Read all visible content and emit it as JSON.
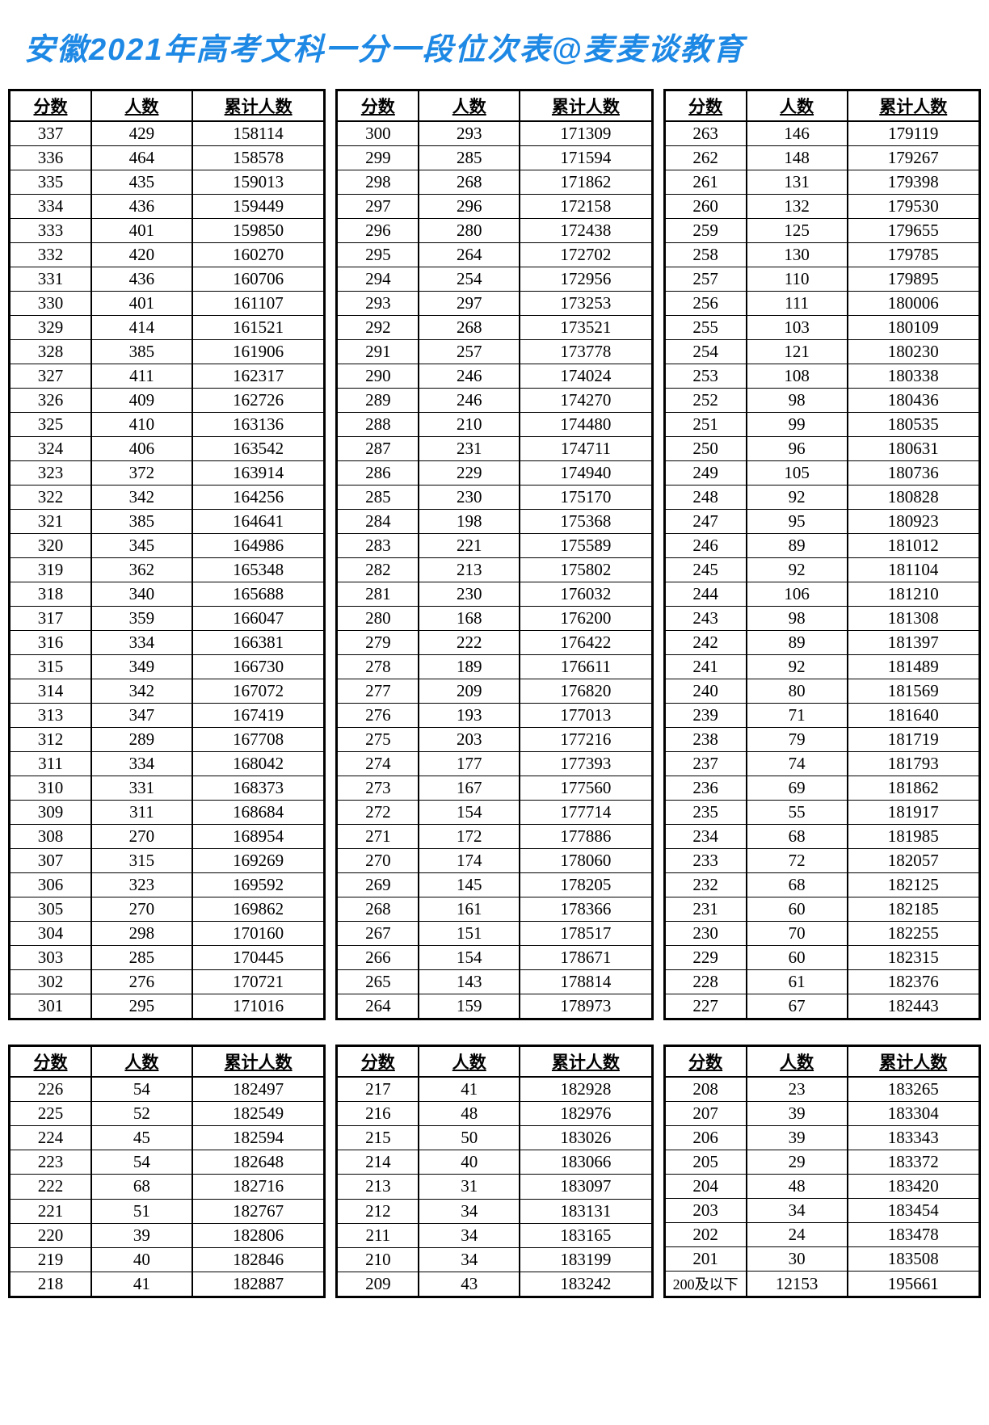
{
  "title": "安徽2021年高考文科一分一段位次表@麦麦谈教育",
  "columns": [
    "分数",
    "人数",
    "累计人数"
  ],
  "styling": {
    "title_color": "#1e88e5",
    "title_fontsize": 38,
    "border_color": "#000000",
    "background_color": "#ffffff",
    "cell_fontsize": 21,
    "header_fontsize": 21
  },
  "top_block": {
    "col1": [
      [
        337,
        429,
        158114
      ],
      [
        336,
        464,
        158578
      ],
      [
        335,
        435,
        159013
      ],
      [
        334,
        436,
        159449
      ],
      [
        333,
        401,
        159850
      ],
      [
        332,
        420,
        160270
      ],
      [
        331,
        436,
        160706
      ],
      [
        330,
        401,
        161107
      ],
      [
        329,
        414,
        161521
      ],
      [
        328,
        385,
        161906
      ],
      [
        327,
        411,
        162317
      ],
      [
        326,
        409,
        162726
      ],
      [
        325,
        410,
        163136
      ],
      [
        324,
        406,
        163542
      ],
      [
        323,
        372,
        163914
      ],
      [
        322,
        342,
        164256
      ],
      [
        321,
        385,
        164641
      ],
      [
        320,
        345,
        164986
      ],
      [
        319,
        362,
        165348
      ],
      [
        318,
        340,
        165688
      ],
      [
        317,
        359,
        166047
      ],
      [
        316,
        334,
        166381
      ],
      [
        315,
        349,
        166730
      ],
      [
        314,
        342,
        167072
      ],
      [
        313,
        347,
        167419
      ],
      [
        312,
        289,
        167708
      ],
      [
        311,
        334,
        168042
      ],
      [
        310,
        331,
        168373
      ],
      [
        309,
        311,
        168684
      ],
      [
        308,
        270,
        168954
      ],
      [
        307,
        315,
        169269
      ],
      [
        306,
        323,
        169592
      ],
      [
        305,
        270,
        169862
      ],
      [
        304,
        298,
        170160
      ],
      [
        303,
        285,
        170445
      ],
      [
        302,
        276,
        170721
      ],
      [
        301,
        295,
        171016
      ]
    ],
    "col2": [
      [
        300,
        293,
        171309
      ],
      [
        299,
        285,
        171594
      ],
      [
        298,
        268,
        171862
      ],
      [
        297,
        296,
        172158
      ],
      [
        296,
        280,
        172438
      ],
      [
        295,
        264,
        172702
      ],
      [
        294,
        254,
        172956
      ],
      [
        293,
        297,
        173253
      ],
      [
        292,
        268,
        173521
      ],
      [
        291,
        257,
        173778
      ],
      [
        290,
        246,
        174024
      ],
      [
        289,
        246,
        174270
      ],
      [
        288,
        210,
        174480
      ],
      [
        287,
        231,
        174711
      ],
      [
        286,
        229,
        174940
      ],
      [
        285,
        230,
        175170
      ],
      [
        284,
        198,
        175368
      ],
      [
        283,
        221,
        175589
      ],
      [
        282,
        213,
        175802
      ],
      [
        281,
        230,
        176032
      ],
      [
        280,
        168,
        176200
      ],
      [
        279,
        222,
        176422
      ],
      [
        278,
        189,
        176611
      ],
      [
        277,
        209,
        176820
      ],
      [
        276,
        193,
        177013
      ],
      [
        275,
        203,
        177216
      ],
      [
        274,
        177,
        177393
      ],
      [
        273,
        167,
        177560
      ],
      [
        272,
        154,
        177714
      ],
      [
        271,
        172,
        177886
      ],
      [
        270,
        174,
        178060
      ],
      [
        269,
        145,
        178205
      ],
      [
        268,
        161,
        178366
      ],
      [
        267,
        151,
        178517
      ],
      [
        266,
        154,
        178671
      ],
      [
        265,
        143,
        178814
      ],
      [
        264,
        159,
        178973
      ]
    ],
    "col3": [
      [
        263,
        146,
        179119
      ],
      [
        262,
        148,
        179267
      ],
      [
        261,
        131,
        179398
      ],
      [
        260,
        132,
        179530
      ],
      [
        259,
        125,
        179655
      ],
      [
        258,
        130,
        179785
      ],
      [
        257,
        110,
        179895
      ],
      [
        256,
        111,
        180006
      ],
      [
        255,
        103,
        180109
      ],
      [
        254,
        121,
        180230
      ],
      [
        253,
        108,
        180338
      ],
      [
        252,
        98,
        180436
      ],
      [
        251,
        99,
        180535
      ],
      [
        250,
        96,
        180631
      ],
      [
        249,
        105,
        180736
      ],
      [
        248,
        92,
        180828
      ],
      [
        247,
        95,
        180923
      ],
      [
        246,
        89,
        181012
      ],
      [
        245,
        92,
        181104
      ],
      [
        244,
        106,
        181210
      ],
      [
        243,
        98,
        181308
      ],
      [
        242,
        89,
        181397
      ],
      [
        241,
        92,
        181489
      ],
      [
        240,
        80,
        181569
      ],
      [
        239,
        71,
        181640
      ],
      [
        238,
        79,
        181719
      ],
      [
        237,
        74,
        181793
      ],
      [
        236,
        69,
        181862
      ],
      [
        235,
        55,
        181917
      ],
      [
        234,
        68,
        181985
      ],
      [
        233,
        72,
        182057
      ],
      [
        232,
        68,
        182125
      ],
      [
        231,
        60,
        182185
      ],
      [
        230,
        70,
        182255
      ],
      [
        229,
        60,
        182315
      ],
      [
        228,
        61,
        182376
      ],
      [
        227,
        67,
        182443
      ]
    ]
  },
  "bottom_block": {
    "col1": [
      [
        226,
        54,
        182497
      ],
      [
        225,
        52,
        182549
      ],
      [
        224,
        45,
        182594
      ],
      [
        223,
        54,
        182648
      ],
      [
        222,
        68,
        182716
      ],
      [
        221,
        51,
        182767
      ],
      [
        220,
        39,
        182806
      ],
      [
        219,
        40,
        182846
      ],
      [
        218,
        41,
        182887
      ]
    ],
    "col2": [
      [
        217,
        41,
        182928
      ],
      [
        216,
        48,
        182976
      ],
      [
        215,
        50,
        183026
      ],
      [
        214,
        40,
        183066
      ],
      [
        213,
        31,
        183097
      ],
      [
        212,
        34,
        183131
      ],
      [
        211,
        34,
        183165
      ],
      [
        210,
        34,
        183199
      ],
      [
        209,
        43,
        183242
      ]
    ],
    "col3": [
      [
        208,
        23,
        183265
      ],
      [
        207,
        39,
        183304
      ],
      [
        206,
        39,
        183343
      ],
      [
        205,
        29,
        183372
      ],
      [
        204,
        48,
        183420
      ],
      [
        203,
        34,
        183454
      ],
      [
        202,
        24,
        183478
      ],
      [
        201,
        30,
        183508
      ],
      [
        "200及以下",
        12153,
        195661
      ]
    ]
  }
}
